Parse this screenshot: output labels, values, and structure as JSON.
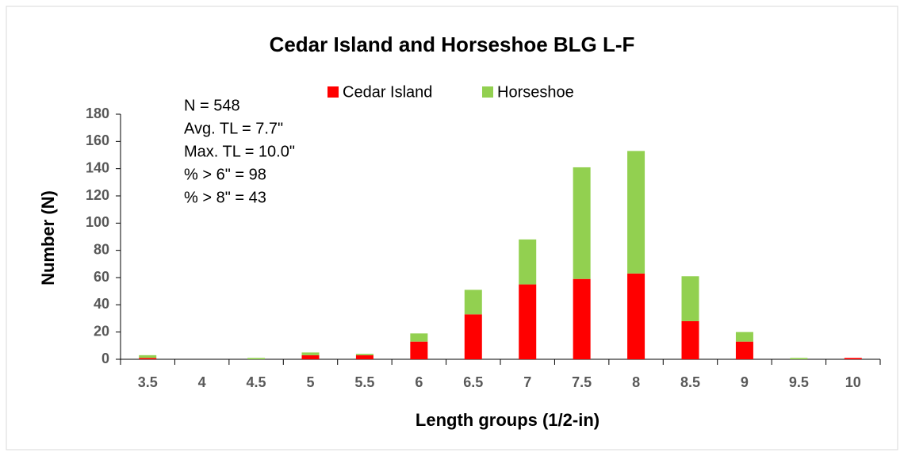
{
  "chart_data": {
    "type": "stacked_bar",
    "title": "Cedar Island and Horseshoe  BLG L-F",
    "x_label": "Length groups (1/2-in)",
    "y_label": "Number (N)",
    "annotations": [
      "N = 548",
      "Avg. TL = 7.7\"",
      "Max. TL = 10.0\"",
      "% > 6\" = 98",
      "% > 8\" = 43"
    ],
    "categories": [
      "3.5",
      "4",
      "4.5",
      "5",
      "5.5",
      "6",
      "6.5",
      "7",
      "7.5",
      "8",
      "8.5",
      "9",
      "9.5",
      "10"
    ],
    "series": [
      {
        "name": "Cedar Island",
        "color": "#ff0000",
        "values": [
          1,
          0,
          0,
          3,
          3,
          13,
          33,
          55,
          59,
          63,
          28,
          13,
          0,
          1
        ]
      },
      {
        "name": "Horseshoe",
        "color": "#92d050",
        "values": [
          2,
          0,
          1,
          2,
          1,
          6,
          18,
          33,
          82,
          90,
          33,
          7,
          1,
          0
        ]
      }
    ],
    "ylim": [
      0,
      180
    ],
    "yticks": [
      0,
      20,
      40,
      60,
      80,
      100,
      120,
      140,
      160,
      180
    ],
    "legend": "top"
  }
}
